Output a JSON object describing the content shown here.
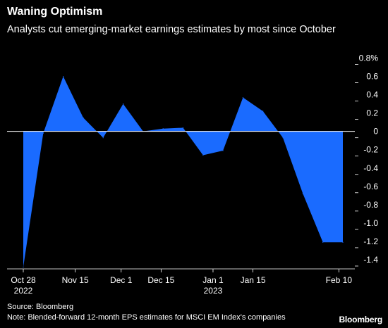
{
  "chart_data": {
    "type": "area",
    "title": "Waning Optimism",
    "subtitle": "Analysts cut emerging-market earnings estimates by most since October",
    "x": [
      0,
      1,
      2,
      3,
      4,
      5,
      6,
      7,
      8,
      9,
      10,
      11,
      12,
      13,
      14,
      15,
      16
    ],
    "y": [
      -1.48,
      -0.02,
      0.6,
      0.15,
      -0.07,
      0.3,
      0.0,
      0.03,
      0.04,
      -0.26,
      -0.21,
      0.37,
      0.22,
      -0.07,
      -0.68,
      -1.21,
      -1.21
    ],
    "x_tick_labels": [
      {
        "pos": 0,
        "line1": "Oct 28",
        "line2": "2022"
      },
      {
        "pos": 2.6,
        "line1": "Nov 15",
        "line2": ""
      },
      {
        "pos": 4.9,
        "line1": "Dec 1",
        "line2": ""
      },
      {
        "pos": 6.9,
        "line1": "Dec 15",
        "line2": ""
      },
      {
        "pos": 9.5,
        "line1": "Jan 1",
        "line2": "2023"
      },
      {
        "pos": 11.5,
        "line1": "Jan 15",
        "line2": ""
      },
      {
        "pos": 15.8,
        "line1": "Feb 10",
        "line2": ""
      }
    ],
    "y_ticks": [
      0.8,
      0.6,
      0.4,
      0.2,
      0,
      -0.2,
      -0.4,
      -0.6,
      -0.8,
      -1.0,
      -1.2,
      -1.4
    ],
    "y_tick_labels": [
      "0.8%",
      "0.6",
      "0.4",
      "0.2",
      "0",
      "-0.2",
      "-0.4",
      "-0.6",
      "-0.8",
      "-1.0",
      "-1.2",
      "-1.4"
    ],
    "ylim": [
      -1.5,
      0.85
    ],
    "fill_color": "#1a6bff",
    "baseline_color": "#ffffff",
    "grid": false
  },
  "footer": {
    "source": "Source: Bloomberg",
    "note": "Note: Blended-forward 12-month EPS estimates for MSCI EM Index's companies",
    "brand": "Bloomberg"
  }
}
